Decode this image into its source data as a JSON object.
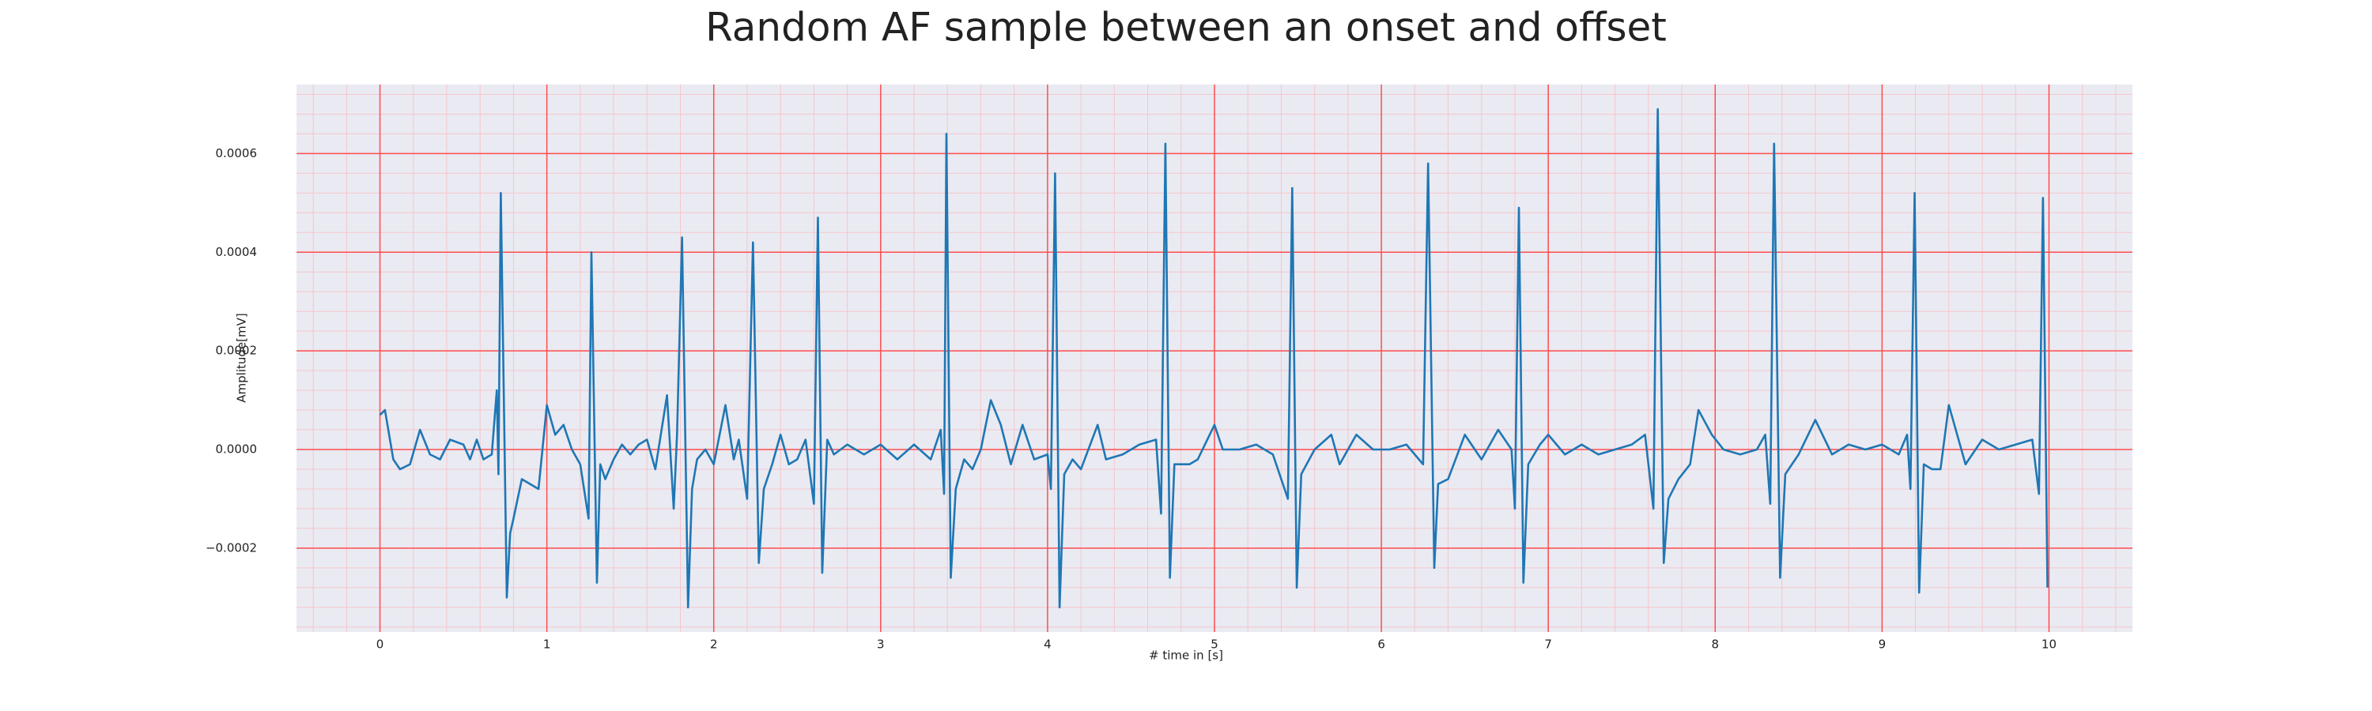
{
  "chart_data": {
    "type": "line",
    "title": "Random AF sample between an onset and offset",
    "xlabel": "# time in [s]",
    "ylabel": "Amplitude[mV]",
    "color": "#1f77b4",
    "grid": true,
    "minor_grid": true,
    "grid_color": "#ff4d4d",
    "minor_grid_color": "#f5c6cc",
    "xlim": [
      -0.5,
      10.5
    ],
    "ylim": [
      -0.00037,
      0.00074
    ],
    "xticks": [
      0,
      1,
      2,
      3,
      4,
      5,
      6,
      7,
      8,
      9,
      10
    ],
    "yticks": [
      {
        "value": -0.0002,
        "label": "−0.0002"
      },
      {
        "value": 0,
        "label": "0.0000"
      },
      0.0002,
      0.0004,
      0.0006
    ],
    "x": [
      0,
      0.03,
      0.08,
      0.12,
      0.18,
      0.24,
      0.3,
      0.36,
      0.42,
      0.5,
      0.54,
      0.58,
      0.62,
      0.67,
      0.7,
      0.71,
      0.724,
      0.76,
      0.78,
      0.8,
      0.85,
      0.95,
      1.0,
      1.05,
      1.1,
      1.15,
      1.2,
      1.25,
      1.267,
      1.3,
      1.32,
      1.35,
      1.4,
      1.45,
      1.5,
      1.55,
      1.6,
      1.65,
      1.72,
      1.76,
      1.78,
      1.81,
      1.846,
      1.87,
      1.9,
      1.95,
      2.0,
      2.07,
      2.12,
      2.15,
      2.2,
      2.235,
      2.27,
      2.3,
      2.35,
      2.4,
      2.45,
      2.5,
      2.55,
      2.6,
      2.624,
      2.65,
      2.68,
      2.72,
      2.8,
      2.9,
      3.0,
      3.1,
      3.2,
      3.3,
      3.36,
      3.38,
      3.394,
      3.42,
      3.45,
      3.5,
      3.55,
      3.6,
      3.66,
      3.72,
      3.78,
      3.85,
      3.92,
      4.0,
      4.02,
      4.045,
      4.072,
      4.1,
      4.15,
      4.2,
      4.3,
      4.35,
      4.45,
      4.55,
      4.65,
      4.68,
      4.706,
      4.733,
      4.76,
      4.85,
      4.9,
      5.0,
      5.05,
      5.15,
      5.25,
      5.35,
      5.44,
      5.466,
      5.493,
      5.52,
      5.6,
      5.7,
      5.75,
      5.85,
      5.95,
      6.05,
      6.15,
      6.25,
      6.28,
      6.317,
      6.34,
      6.4,
      6.5,
      6.6,
      6.7,
      6.78,
      6.8,
      6.824,
      6.851,
      6.88,
      6.95,
      7.0,
      7.1,
      7.2,
      7.3,
      7.4,
      7.5,
      7.58,
      7.63,
      7.656,
      7.692,
      7.72,
      7.78,
      7.85,
      7.9,
      7.98,
      8.05,
      8.15,
      8.25,
      8.3,
      8.33,
      8.353,
      8.389,
      8.42,
      8.5,
      8.6,
      8.7,
      8.8,
      8.9,
      9.0,
      9.1,
      9.15,
      9.17,
      9.195,
      9.222,
      9.25,
      9.3,
      9.35,
      9.4,
      9.5,
      9.6,
      9.7,
      9.8,
      9.9,
      9.94,
      9.964,
      9.991
    ],
    "values": [
      7e-05,
      8e-05,
      -2e-05,
      -4e-05,
      -3e-05,
      4e-05,
      -1e-05,
      -2e-05,
      2e-05,
      1e-05,
      -2e-05,
      2e-05,
      -2e-05,
      -1e-05,
      0.00012,
      -5e-05,
      0.00052,
      -0.0003,
      -0.00017,
      -0.00014,
      -6e-05,
      -8e-05,
      9e-05,
      3e-05,
      5e-05,
      0,
      -3e-05,
      -0.00014,
      0.0004,
      -0.00027,
      -3e-05,
      -6e-05,
      -2e-05,
      1e-05,
      -1e-05,
      1e-05,
      2e-05,
      -4e-05,
      0.00011,
      -0.00012,
      3e-05,
      0.00043,
      -0.00032,
      -8e-05,
      -2e-05,
      0,
      -3e-05,
      9e-05,
      -2e-05,
      2e-05,
      -0.0001,
      0.00042,
      -0.00023,
      -8e-05,
      -3e-05,
      3e-05,
      -3e-05,
      -2e-05,
      2e-05,
      -0.00011,
      0.00047,
      -0.00025,
      2e-05,
      -1e-05,
      1e-05,
      -1e-05,
      1e-05,
      -2e-05,
      1e-05,
      -2e-05,
      4e-05,
      -9e-05,
      0.00064,
      -0.00026,
      -8e-05,
      -2e-05,
      -4e-05,
      0,
      0.0001,
      5e-05,
      -3e-05,
      5e-05,
      -2e-05,
      -1e-05,
      -8e-05,
      0.00056,
      -0.00032,
      -5e-05,
      -2e-05,
      -4e-05,
      5e-05,
      -2e-05,
      -1e-05,
      1e-05,
      2e-05,
      -0.00013,
      0.00062,
      -0.00026,
      -3e-05,
      -3e-05,
      -2e-05,
      5e-05,
      0,
      0,
      1e-05,
      -1e-05,
      -0.0001,
      0.00053,
      -0.00028,
      -5e-05,
      0,
      3e-05,
      -3e-05,
      3e-05,
      0,
      0,
      1e-05,
      -3e-05,
      0.00058,
      -0.00024,
      -7e-05,
      -6e-05,
      3e-05,
      -2e-05,
      4e-05,
      0,
      -0.00012,
      0.00049,
      -0.00027,
      -3e-05,
      1e-05,
      3e-05,
      -1e-05,
      1e-05,
      -1e-05,
      0,
      1e-05,
      3e-05,
      -0.00012,
      0.00069,
      -0.00023,
      -0.0001,
      -6e-05,
      -3e-05,
      8e-05,
      3e-05,
      0,
      -1e-05,
      0,
      3e-05,
      -0.00011,
      0.00062,
      -0.00026,
      -5e-05,
      -1e-05,
      6e-05,
      -1e-05,
      1e-05,
      0,
      1e-05,
      -1e-05,
      3e-05,
      -8e-05,
      0.00052,
      -0.00029,
      -3e-05,
      -4e-05,
      -4e-05,
      9e-05,
      -3e-05,
      2e-05,
      0,
      1e-05,
      2e-05,
      -9e-05,
      0.00051,
      -0.00028
    ]
  }
}
